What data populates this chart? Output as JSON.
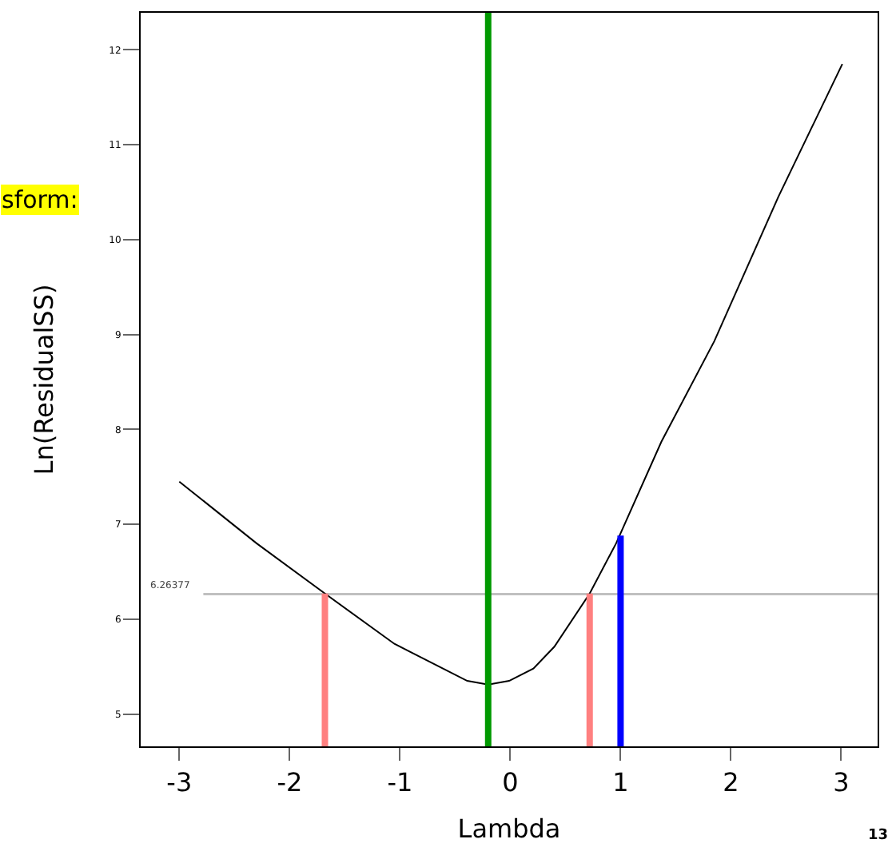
{
  "chart_data": {
    "type": "line",
    "xlabel": "Lambda",
    "ylabel": "Ln(ResidualSS)",
    "x": [
      -3.0,
      -2.3,
      -1.68,
      -1.05,
      -0.39,
      -0.2,
      -0.01,
      0.21,
      0.4,
      0.72,
      0.96,
      1.37,
      1.85,
      2.43,
      3.01
    ],
    "series": [
      {
        "color": "#000000",
        "values": [
          7.45,
          6.8,
          6.27,
          5.74,
          5.35,
          5.31,
          5.35,
          5.48,
          5.71,
          6.27,
          6.8,
          7.87,
          8.93,
          10.45,
          11.85
        ]
      },
      {
        "color": "#ff8080",
        "x": [
          -1.68,
          -1.68
        ],
        "values": [
          4.66,
          6.27
        ]
      },
      {
        "color": "#ff8080",
        "x": [
          0.72,
          0.72
        ],
        "values": [
          4.66,
          6.27
        ]
      },
      {
        "color": "#0000ff",
        "x": [
          1.0,
          1.0
        ],
        "values": [
          4.66,
          6.88
        ]
      }
    ],
    "ref_lines": [
      {
        "axis": "x",
        "value": -0.2,
        "color": "#009900"
      },
      {
        "axis": "y",
        "value": 6.26377,
        "label": "6.26377",
        "color": "#c0c0c0"
      }
    ],
    "annotations": [
      "sform:",
      "13"
    ],
    "xlim": [
      -3.35,
      3.33
    ],
    "ylim": [
      4.66,
      12.39
    ],
    "xticks": [
      -3,
      -2,
      -1,
      0,
      1,
      2,
      3
    ],
    "yticks": [
      5,
      6,
      7,
      8,
      9,
      10,
      11,
      12
    ],
    "grid": false,
    "marker": "none",
    "line_style": "solid"
  }
}
